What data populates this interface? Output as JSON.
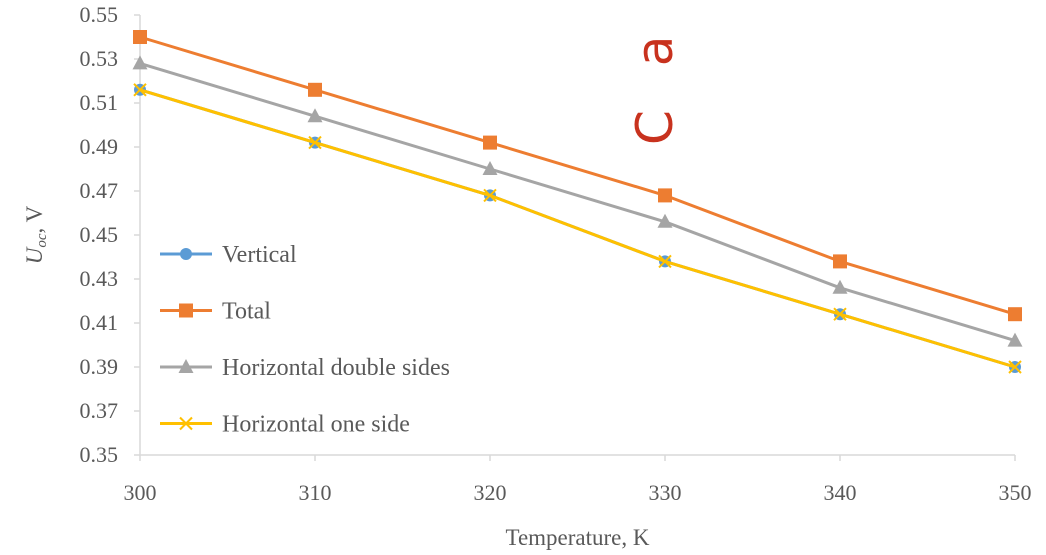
{
  "chart_data": {
    "type": "line",
    "x": [
      300,
      310,
      320,
      330,
      340,
      350
    ],
    "xlim": [
      300,
      350
    ],
    "ylim": [
      0.35,
      0.55
    ],
    "xticks": [
      "300",
      "310",
      "320",
      "330",
      "340",
      "350"
    ],
    "yticks": [
      "0.35",
      "0.37",
      "0.39",
      "0.41",
      "0.43",
      "0.45",
      "0.47",
      "0.49",
      "0.51",
      "0.53",
      "0.55"
    ],
    "xlabel": "Temperature, K",
    "ylabel_main": "U",
    "ylabel_sub": "oc",
    "ylabel_rest": ", V",
    "grid": false,
    "legend_position": "lower-left",
    "series": [
      {
        "name": "Vertical",
        "values": [
          0.516,
          0.492,
          0.468,
          0.438,
          0.414,
          0.39
        ],
        "color": "#5b9bd5",
        "marker": "circle"
      },
      {
        "name": "Total",
        "values": [
          0.54,
          0.516,
          0.492,
          0.468,
          0.438,
          0.414
        ],
        "color": "#ed7d31",
        "marker": "square"
      },
      {
        "name": "Horizontal double sides",
        "values": [
          0.528,
          0.504,
          0.48,
          0.456,
          0.426,
          0.402
        ],
        "color": "#a5a5a5",
        "marker": "triangle"
      },
      {
        "name": "Horizontal one side",
        "values": [
          0.516,
          0.492,
          0.468,
          0.438,
          0.414,
          0.39
        ],
        "color": "#ffc000",
        "marker": "x"
      }
    ]
  },
  "watermark": "C a l"
}
